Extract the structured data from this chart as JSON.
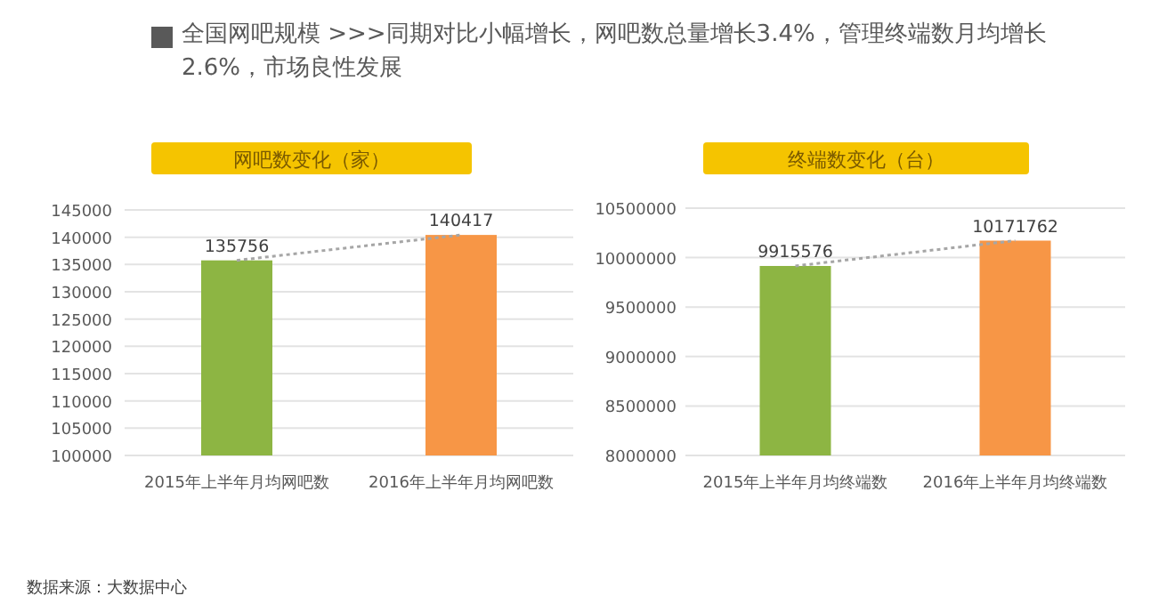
{
  "chart_data": [
    {
      "type": "bar",
      "title": "网吧数变化（家）",
      "annotations": [
        "全国网吧规模 >>>同期对比小幅增长，网吧数总量增长3.4%，管理终端数月均增长2.6%，市场良性发展",
        "数据来源：大数据中心"
      ],
      "categories": [
        "2015年上半年月均网吧数",
        "2016年上半年月均网吧数"
      ],
      "series": [
        {
          "colors": [
            "#8db543",
            "#f79646"
          ],
          "values": [
            135756,
            140417
          ],
          "value_labels": [
            "135756",
            "140417"
          ]
        },
        {
          "type": "line",
          "color": "#a6a6a6",
          "line_style": "dotted",
          "values": [
            135756,
            140417
          ]
        }
      ],
      "ylim": [
        100000,
        145000
      ],
      "yticks": [
        100000,
        105000,
        110000,
        115000,
        120000,
        125000,
        130000,
        135000,
        140000,
        145000
      ],
      "grid": "y"
    },
    {
      "type": "bar",
      "title": "终端数变化（台）",
      "categories": [
        "2015年上半年月均终端数",
        "2016年上半年月均终端数"
      ],
      "series": [
        {
          "colors": [
            "#8db543",
            "#f79646"
          ],
          "values": [
            9915576,
            10171762
          ],
          "value_labels": [
            "9915576",
            "10171762"
          ]
        },
        {
          "type": "line",
          "color": "#a6a6a6",
          "line_style": "dotted",
          "values": [
            9915576,
            10171762
          ]
        }
      ],
      "ylim": [
        8000000,
        10500000
      ],
      "yticks": [
        8000000,
        8500000,
        9000000,
        9500000,
        10000000,
        10500000
      ],
      "grid": "y"
    }
  ]
}
